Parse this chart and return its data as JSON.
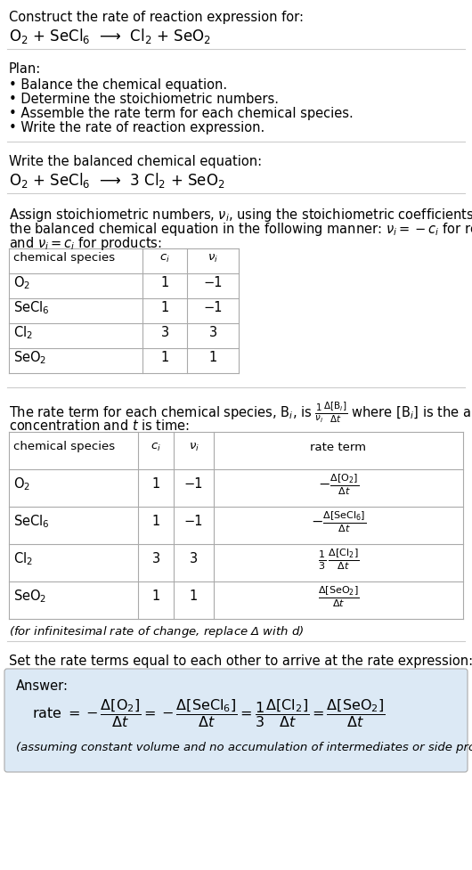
{
  "bg_color": "#ffffff",
  "text_color": "#000000",
  "title_text": "Construct the rate of reaction expression for:",
  "reaction_unbalanced": "O$_2$ + SeCl$_6$  ⟶  Cl$_2$ + SeO$_2$",
  "plan_header": "Plan:",
  "plan_items": [
    "• Balance the chemical equation.",
    "• Determine the stoichiometric numbers.",
    "• Assemble the rate term for each chemical species.",
    "• Write the rate of reaction expression."
  ],
  "balanced_header": "Write the balanced chemical equation:",
  "reaction_balanced": "O$_2$ + SeCl$_6$  ⟶  3 Cl$_2$ + SeO$_2$",
  "stoich_intro1": "Assign stoichiometric numbers, $\\nu_i$, using the stoichiometric coefficients, $c_i$, from",
  "stoich_intro2": "the balanced chemical equation in the following manner: $\\nu_i = -c_i$ for reactants",
  "stoich_intro3": "and $\\nu_i = c_i$ for products:",
  "table1_headers": [
    "chemical species",
    "$c_i$",
    "$\\nu_i$"
  ],
  "table1_data": [
    [
      "O$_2$",
      "1",
      "−1"
    ],
    [
      "SeCl$_6$",
      "1",
      "−1"
    ],
    [
      "Cl$_2$",
      "3",
      "3"
    ],
    [
      "SeO$_2$",
      "1",
      "1"
    ]
  ],
  "rate_intro1": "The rate term for each chemical species, B$_i$, is $\\frac{1}{\\nu_i}\\frac{\\Delta[\\mathrm{B}_i]}{\\Delta t}$ where [B$_i$] is the amount",
  "rate_intro2": "concentration and $t$ is time:",
  "table2_headers": [
    "chemical species",
    "$c_i$",
    "$\\nu_i$",
    "rate term"
  ],
  "table2_data": [
    [
      "O$_2$",
      "1",
      "−1",
      "$-\\frac{\\Delta[\\mathrm{O_2}]}{\\Delta t}$"
    ],
    [
      "SeCl$_6$",
      "1",
      "−1",
      "$-\\frac{\\Delta[\\mathrm{SeCl_6}]}{\\Delta t}$"
    ],
    [
      "Cl$_2$",
      "3",
      "3",
      "$\\frac{1}{3}\\,\\frac{\\Delta[\\mathrm{Cl_2}]}{\\Delta t}$"
    ],
    [
      "SeO$_2$",
      "1",
      "1",
      "$\\frac{\\Delta[\\mathrm{SeO_2}]}{\\Delta t}$"
    ]
  ],
  "infinitesimal_note": "(for infinitesimal rate of change, replace Δ with $d$)",
  "set_equal_text": "Set the rate terms equal to each other to arrive at the rate expression:",
  "answer_box_color": "#dce9f5",
  "answer_label": "Answer:",
  "rate_expression": "rate $= -\\dfrac{\\Delta[\\mathrm{O_2}]}{\\Delta t} = -\\dfrac{\\Delta[\\mathrm{SeCl_6}]}{\\Delta t} = \\dfrac{1}{3}\\dfrac{\\Delta[\\mathrm{Cl_2}]}{\\Delta t} = \\dfrac{\\Delta[\\mathrm{SeO_2}]}{\\Delta t}$",
  "assuming_note": "(assuming constant volume and no accumulation of intermediates or side products)",
  "divider_color": "#cccccc",
  "table_line_color": "#aaaaaa",
  "fs": 10.5,
  "fs_small": 9.5,
  "fs_large": 12
}
